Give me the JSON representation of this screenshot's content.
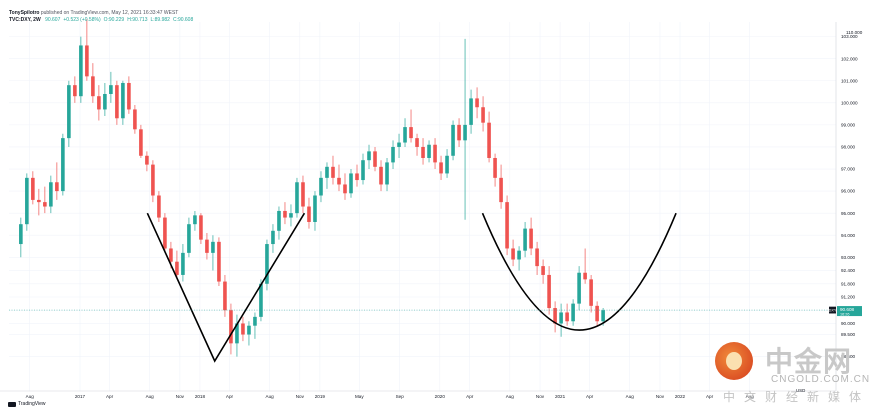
{
  "header": {
    "author": "TonySpilotro",
    "published": "published on TradingView.com, May 12, 2021 16:33:47 WEST",
    "symbol": "TVC:DXY, 2W",
    "ohlc": [
      {
        "text": "90.607",
        "dir": "up"
      },
      {
        "text": "+0.523 (+0.58%)",
        "dir": "up"
      },
      {
        "text": "O:90.229",
        "dir": "up"
      },
      {
        "text": "H:90.713",
        "dir": "up"
      },
      {
        "text": "L:89.982",
        "dir": "up"
      },
      {
        "text": "C:90.608",
        "dir": "up"
      }
    ]
  },
  "footer": {
    "brand": "TradingView"
  },
  "watermark": {
    "logo": "cngold-logo-icon",
    "cn": "中金网",
    "en": "CNGOLD.COM.CN",
    "sub": "中文财经新媒体"
  },
  "chart_data": {
    "type": "candlestick",
    "symbol": "TVC:DXY",
    "interval": "2W",
    "price_axis": {
      "ylim": [
        87.1,
        104.0
      ],
      "ticks": [
        "103.000",
        "102.000",
        "101.000",
        "100.000",
        "99.000",
        "98.000",
        "97.000",
        "96.000",
        "95.000",
        "94.000",
        "93.000",
        "92.400",
        "91.800",
        "91.200",
        "90.600",
        "90.000",
        "89.500",
        "88.500"
      ],
      "header_tick": "110.000",
      "last_price": {
        "symbol": "DXY",
        "value": "90.608",
        "time": "16:26"
      },
      "currency": "USD"
    },
    "time_axis": {
      "range": [
        "2016-07",
        "2022-10"
      ],
      "ticks": [
        {
          "label": "Aug",
          "date": "2016-08"
        },
        {
          "label": "2017",
          "date": "2017-01"
        },
        {
          "label": "Apr",
          "date": "2017-04"
        },
        {
          "label": "Aug",
          "date": "2017-08"
        },
        {
          "label": "Nov",
          "date": "2017-11"
        },
        {
          "label": "2018",
          "date": "2018-01"
        },
        {
          "label": "Apr",
          "date": "2018-04"
        },
        {
          "label": "Aug",
          "date": "2018-08"
        },
        {
          "label": "Nov",
          "date": "2018-11"
        },
        {
          "label": "2019",
          "date": "2019-01"
        },
        {
          "label": "May",
          "date": "2019-05"
        },
        {
          "label": "Sep",
          "date": "2019-09"
        },
        {
          "label": "2020",
          "date": "2020-01"
        },
        {
          "label": "Apr",
          "date": "2020-04"
        },
        {
          "label": "Aug",
          "date": "2020-08"
        },
        {
          "label": "Nov",
          "date": "2020-11"
        },
        {
          "label": "2021",
          "date": "2021-01"
        },
        {
          "label": "Apr",
          "date": "2021-04"
        },
        {
          "label": "Aug",
          "date": "2021-08"
        },
        {
          "label": "Nov",
          "date": "2021-11"
        },
        {
          "label": "2022",
          "date": "2022-01"
        },
        {
          "label": "Apr",
          "date": "2022-04"
        },
        {
          "label": "Aug",
          "date": "2022-08"
        }
      ]
    },
    "candles": [
      {
        "o": 93.6,
        "h": 94.8,
        "l": 93.0,
        "c": 94.5
      },
      {
        "o": 94.5,
        "h": 96.8,
        "l": 94.2,
        "c": 96.6
      },
      {
        "o": 96.6,
        "h": 96.9,
        "l": 95.4,
        "c": 95.6
      },
      {
        "o": 95.6,
        "h": 96.1,
        "l": 94.9,
        "c": 95.5
      },
      {
        "o": 95.5,
        "h": 96.2,
        "l": 95.0,
        "c": 95.3
      },
      {
        "o": 95.3,
        "h": 96.7,
        "l": 95.0,
        "c": 96.4
      },
      {
        "o": 96.4,
        "h": 97.3,
        "l": 95.6,
        "c": 96.0
      },
      {
        "o": 96.0,
        "h": 98.6,
        "l": 95.8,
        "c": 98.4
      },
      {
        "o": 98.4,
        "h": 101.0,
        "l": 98.0,
        "c": 100.8
      },
      {
        "o": 100.8,
        "h": 101.2,
        "l": 100.0,
        "c": 100.3
      },
      {
        "o": 100.3,
        "h": 103.0,
        "l": 100.0,
        "c": 102.6
      },
      {
        "o": 102.6,
        "h": 103.8,
        "l": 101.0,
        "c": 101.2
      },
      {
        "o": 101.2,
        "h": 101.8,
        "l": 100.0,
        "c": 100.3
      },
      {
        "o": 100.3,
        "h": 100.8,
        "l": 99.2,
        "c": 99.7
      },
      {
        "o": 99.7,
        "h": 100.9,
        "l": 99.4,
        "c": 100.4
      },
      {
        "o": 100.4,
        "h": 101.4,
        "l": 100.0,
        "c": 100.8
      },
      {
        "o": 100.8,
        "h": 101.0,
        "l": 99.0,
        "c": 99.3
      },
      {
        "o": 99.3,
        "h": 101.0,
        "l": 99.0,
        "c": 100.9
      },
      {
        "o": 100.9,
        "h": 101.2,
        "l": 99.5,
        "c": 99.7
      },
      {
        "o": 99.7,
        "h": 99.9,
        "l": 98.6,
        "c": 98.8
      },
      {
        "o": 98.8,
        "h": 99.0,
        "l": 97.5,
        "c": 97.6
      },
      {
        "o": 97.6,
        "h": 97.8,
        "l": 96.9,
        "c": 97.2
      },
      {
        "o": 97.2,
        "h": 97.4,
        "l": 95.5,
        "c": 95.8
      },
      {
        "o": 95.8,
        "h": 96.0,
        "l": 94.6,
        "c": 94.8
      },
      {
        "o": 94.8,
        "h": 95.0,
        "l": 93.2,
        "c": 93.4
      },
      {
        "o": 93.4,
        "h": 93.7,
        "l": 92.5,
        "c": 92.8
      },
      {
        "o": 92.8,
        "h": 93.3,
        "l": 92.1,
        "c": 92.2
      },
      {
        "o": 92.2,
        "h": 93.6,
        "l": 91.9,
        "c": 93.2
      },
      {
        "o": 93.2,
        "h": 94.8,
        "l": 93.0,
        "c": 94.5
      },
      {
        "o": 94.5,
        "h": 95.1,
        "l": 94.2,
        "c": 94.9
      },
      {
        "o": 94.9,
        "h": 95.0,
        "l": 93.6,
        "c": 93.8
      },
      {
        "o": 93.8,
        "h": 94.1,
        "l": 92.9,
        "c": 93.2
      },
      {
        "o": 93.2,
        "h": 94.0,
        "l": 92.4,
        "c": 93.7
      },
      {
        "o": 93.7,
        "h": 93.9,
        "l": 91.7,
        "c": 91.9
      },
      {
        "o": 91.9,
        "h": 92.2,
        "l": 90.3,
        "c": 90.6
      },
      {
        "o": 90.6,
        "h": 90.9,
        "l": 88.6,
        "c": 89.1
      },
      {
        "o": 89.1,
        "h": 90.4,
        "l": 88.5,
        "c": 90.0
      },
      {
        "o": 90.0,
        "h": 90.3,
        "l": 89.2,
        "c": 89.5
      },
      {
        "o": 89.5,
        "h": 90.1,
        "l": 89.0,
        "c": 89.9
      },
      {
        "o": 89.9,
        "h": 90.5,
        "l": 89.3,
        "c": 90.3
      },
      {
        "o": 90.3,
        "h": 92.0,
        "l": 90.1,
        "c": 91.8
      },
      {
        "o": 91.8,
        "h": 93.8,
        "l": 91.5,
        "c": 93.6
      },
      {
        "o": 93.6,
        "h": 94.5,
        "l": 93.2,
        "c": 94.2
      },
      {
        "o": 94.2,
        "h": 95.3,
        "l": 93.8,
        "c": 95.1
      },
      {
        "o": 95.1,
        "h": 95.5,
        "l": 94.5,
        "c": 94.8
      },
      {
        "o": 94.8,
        "h": 95.4,
        "l": 94.4,
        "c": 95.0
      },
      {
        "o": 95.0,
        "h": 96.6,
        "l": 94.8,
        "c": 96.4
      },
      {
        "o": 96.4,
        "h": 96.7,
        "l": 95.0,
        "c": 95.3
      },
      {
        "o": 95.3,
        "h": 95.7,
        "l": 94.3,
        "c": 94.6
      },
      {
        "o": 94.6,
        "h": 96.0,
        "l": 94.2,
        "c": 95.8
      },
      {
        "o": 95.8,
        "h": 96.9,
        "l": 95.5,
        "c": 96.6
      },
      {
        "o": 96.6,
        "h": 97.3,
        "l": 96.1,
        "c": 97.1
      },
      {
        "o": 97.1,
        "h": 97.6,
        "l": 96.3,
        "c": 96.6
      },
      {
        "o": 96.6,
        "h": 97.2,
        "l": 96.0,
        "c": 96.3
      },
      {
        "o": 96.3,
        "h": 96.8,
        "l": 95.6,
        "c": 95.9
      },
      {
        "o": 95.9,
        "h": 97.0,
        "l": 95.7,
        "c": 96.8
      },
      {
        "o": 96.8,
        "h": 97.2,
        "l": 96.2,
        "c": 96.5
      },
      {
        "o": 96.5,
        "h": 97.7,
        "l": 96.3,
        "c": 97.4
      },
      {
        "o": 97.4,
        "h": 98.1,
        "l": 97.0,
        "c": 97.8
      },
      {
        "o": 97.8,
        "h": 98.0,
        "l": 96.9,
        "c": 97.1
      },
      {
        "o": 97.1,
        "h": 97.4,
        "l": 96.0,
        "c": 96.3
      },
      {
        "o": 96.3,
        "h": 97.5,
        "l": 96.0,
        "c": 97.3
      },
      {
        "o": 97.3,
        "h": 98.3,
        "l": 97.0,
        "c": 98.0
      },
      {
        "o": 98.0,
        "h": 98.6,
        "l": 97.5,
        "c": 98.2
      },
      {
        "o": 98.2,
        "h": 99.3,
        "l": 98.0,
        "c": 98.9
      },
      {
        "o": 98.9,
        "h": 99.7,
        "l": 98.2,
        "c": 98.4
      },
      {
        "o": 98.4,
        "h": 98.6,
        "l": 97.6,
        "c": 98.0
      },
      {
        "o": 98.0,
        "h": 98.4,
        "l": 97.2,
        "c": 97.5
      },
      {
        "o": 97.5,
        "h": 98.3,
        "l": 97.3,
        "c": 98.1
      },
      {
        "o": 98.1,
        "h": 98.4,
        "l": 97.0,
        "c": 97.3
      },
      {
        "o": 97.3,
        "h": 97.6,
        "l": 96.5,
        "c": 96.8
      },
      {
        "o": 96.8,
        "h": 97.9,
        "l": 96.6,
        "c": 97.6
      },
      {
        "o": 97.6,
        "h": 99.2,
        "l": 97.4,
        "c": 99.0
      },
      {
        "o": 99.0,
        "h": 99.3,
        "l": 98.0,
        "c": 98.3
      },
      {
        "o": 98.3,
        "h": 102.9,
        "l": 94.7,
        "c": 99.0
      },
      {
        "o": 99.0,
        "h": 100.6,
        "l": 98.6,
        "c": 100.2
      },
      {
        "o": 100.2,
        "h": 100.7,
        "l": 99.3,
        "c": 99.8
      },
      {
        "o": 99.8,
        "h": 100.3,
        "l": 98.7,
        "c": 99.1
      },
      {
        "o": 99.1,
        "h": 99.6,
        "l": 97.3,
        "c": 97.5
      },
      {
        "o": 97.5,
        "h": 97.7,
        "l": 96.2,
        "c": 96.6
      },
      {
        "o": 96.6,
        "h": 97.2,
        "l": 95.2,
        "c": 95.5
      },
      {
        "o": 95.5,
        "h": 95.8,
        "l": 93.1,
        "c": 93.4
      },
      {
        "o": 93.4,
        "h": 93.8,
        "l": 92.6,
        "c": 92.9
      },
      {
        "o": 92.9,
        "h": 93.5,
        "l": 92.4,
        "c": 93.3
      },
      {
        "o": 93.3,
        "h": 94.6,
        "l": 93.0,
        "c": 94.3
      },
      {
        "o": 94.3,
        "h": 94.8,
        "l": 93.1,
        "c": 93.4
      },
      {
        "o": 93.4,
        "h": 93.7,
        "l": 92.2,
        "c": 92.6
      },
      {
        "o": 92.6,
        "h": 92.9,
        "l": 91.8,
        "c": 92.2
      },
      {
        "o": 92.2,
        "h": 92.6,
        "l": 90.4,
        "c": 90.7
      },
      {
        "o": 90.7,
        "h": 91.0,
        "l": 89.6,
        "c": 90.0
      },
      {
        "o": 90.0,
        "h": 90.9,
        "l": 89.4,
        "c": 90.5
      },
      {
        "o": 90.5,
        "h": 90.9,
        "l": 89.9,
        "c": 90.1
      },
      {
        "o": 90.1,
        "h": 91.1,
        "l": 89.9,
        "c": 90.9
      },
      {
        "o": 90.9,
        "h": 92.6,
        "l": 90.6,
        "c": 92.3
      },
      {
        "o": 92.3,
        "h": 93.4,
        "l": 91.8,
        "c": 92.0
      },
      {
        "o": 92.0,
        "h": 92.2,
        "l": 90.5,
        "c": 90.8
      },
      {
        "o": 90.8,
        "h": 91.0,
        "l": 89.9,
        "c": 90.1
      },
      {
        "o": 90.1,
        "h": 90.7,
        "l": 89.9,
        "c": 90.6
      }
    ],
    "time_span": [
      "2016-07-05",
      "2021-05-12"
    ],
    "drawings": [
      {
        "name": "v-pattern",
        "points": [
          [
            "2017-07-25",
            95.0
          ],
          [
            "2018-02-15",
            88.3
          ],
          [
            "2018-11-15",
            95.0
          ]
        ]
      },
      {
        "name": "cup-pattern",
        "points": [
          [
            "2020-05-10",
            95.0
          ],
          [
            "2021-03-01",
            89.7
          ],
          [
            "2021-12-20",
            95.0
          ]
        ]
      }
    ],
    "colors": {
      "up": "#26a69a",
      "down": "#ef5350",
      "grid": "#f0f3fa",
      "axis_text": "#131722",
      "drawing": "#000000",
      "last_price_bg": "#26a69a"
    }
  }
}
